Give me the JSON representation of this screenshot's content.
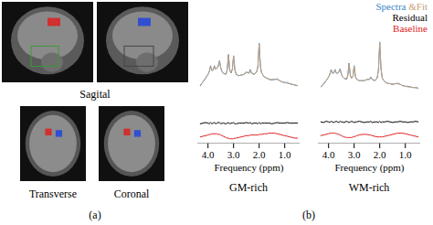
{
  "panel_a": {
    "label": "(a)",
    "views": [
      {
        "label": "Sagital"
      },
      {
        "label": "Transverse"
      },
      {
        "label": "Coronal"
      }
    ]
  },
  "panel_b_label": "(b)",
  "chart_data": [
    {
      "type": "line",
      "title": "GM-rich",
      "x_label": "Frequency (ppm)",
      "xlim": [
        4.4,
        0.4
      ],
      "xticks": [
        4,
        3,
        2,
        1
      ],
      "ylim": [
        -0.62,
        1.02
      ],
      "tick_labels": "x",
      "x": [
        4.3,
        4.2,
        4.1,
        4.0,
        3.95,
        3.9,
        3.85,
        3.8,
        3.75,
        3.7,
        3.65,
        3.6,
        3.55,
        3.5,
        3.45,
        3.4,
        3.3,
        3.25,
        3.2,
        3.15,
        3.1,
        3.05,
        3.0,
        2.95,
        2.9,
        2.8,
        2.7,
        2.6,
        2.5,
        2.4,
        2.35,
        2.3,
        2.2,
        2.1,
        2.05,
        2.0,
        1.95,
        1.9,
        1.8,
        1.7,
        1.6,
        1.5,
        1.4,
        1.3,
        1.2,
        1.1,
        1.0,
        0.9,
        0.8,
        0.7,
        0.6,
        0.5
      ],
      "series": [
        {
          "name": "Spectra",
          "color": "#3a86c8",
          "values": [
            0.3,
            0.36,
            0.42,
            0.48,
            0.52,
            0.62,
            0.54,
            0.55,
            0.62,
            0.56,
            0.58,
            0.62,
            0.7,
            0.58,
            0.52,
            0.5,
            0.48,
            0.55,
            0.8,
            0.55,
            0.5,
            0.56,
            0.78,
            0.55,
            0.48,
            0.46,
            0.47,
            0.48,
            0.52,
            0.5,
            0.56,
            0.5,
            0.48,
            0.52,
            0.6,
            0.98,
            0.6,
            0.5,
            0.44,
            0.42,
            0.4,
            0.39,
            0.4,
            0.41,
            0.38,
            0.36,
            0.35,
            0.35,
            0.33,
            0.32,
            0.31,
            0.3
          ]
        },
        {
          "name": "&Fit",
          "color": "#c8a07a",
          "values": [
            0.31,
            0.36,
            0.41,
            0.48,
            0.53,
            0.61,
            0.55,
            0.55,
            0.61,
            0.57,
            0.58,
            0.61,
            0.69,
            0.59,
            0.52,
            0.5,
            0.49,
            0.55,
            0.79,
            0.56,
            0.5,
            0.56,
            0.77,
            0.56,
            0.49,
            0.46,
            0.47,
            0.48,
            0.51,
            0.5,
            0.55,
            0.51,
            0.48,
            0.52,
            0.61,
            0.97,
            0.61,
            0.5,
            0.44,
            0.42,
            0.4,
            0.4,
            0.4,
            0.4,
            0.38,
            0.36,
            0.35,
            0.34,
            0.33,
            0.32,
            0.31,
            0.3
          ]
        },
        {
          "name": "Residual",
          "color": "#000000",
          "values": [
            -0.31,
            -0.3,
            -0.29,
            -0.3,
            -0.31,
            -0.29,
            -0.31,
            -0.3,
            -0.29,
            -0.31,
            -0.3,
            -0.29,
            -0.29,
            -0.31,
            -0.3,
            -0.3,
            -0.31,
            -0.3,
            -0.29,
            -0.31,
            -0.3,
            -0.3,
            -0.29,
            -0.31,
            -0.31,
            -0.3,
            -0.3,
            -0.3,
            -0.29,
            -0.3,
            -0.29,
            -0.31,
            -0.3,
            -0.3,
            -0.31,
            -0.29,
            -0.31,
            -0.3,
            -0.3,
            -0.3,
            -0.3,
            -0.31,
            -0.3,
            -0.29,
            -0.3,
            -0.3,
            -0.3,
            -0.29,
            -0.3,
            -0.3,
            -0.3,
            -0.3
          ]
        },
        {
          "name": "Baseline",
          "color": "#e02020",
          "values": [
            -0.52,
            -0.51,
            -0.5,
            -0.49,
            -0.48,
            -0.48,
            -0.47,
            -0.47,
            -0.47,
            -0.47,
            -0.47,
            -0.48,
            -0.48,
            -0.49,
            -0.5,
            -0.51,
            -0.53,
            -0.54,
            -0.54,
            -0.55,
            -0.55,
            -0.55,
            -0.55,
            -0.54,
            -0.54,
            -0.53,
            -0.52,
            -0.51,
            -0.5,
            -0.5,
            -0.49,
            -0.49,
            -0.49,
            -0.49,
            -0.49,
            -0.48,
            -0.48,
            -0.48,
            -0.47,
            -0.47,
            -0.46,
            -0.46,
            -0.46,
            -0.47,
            -0.48,
            -0.49,
            -0.5,
            -0.51,
            -0.52,
            -0.53,
            -0.54,
            -0.54
          ]
        }
      ]
    },
    {
      "type": "line",
      "title": "WM-rich",
      "x_label": "Frequency (ppm)",
      "xlim": [
        4.4,
        0.4
      ],
      "xticks": [
        4,
        3,
        2,
        1
      ],
      "ylim": [
        -0.62,
        1.02
      ],
      "tick_labels": "x",
      "legend": "top-right",
      "x": [
        4.3,
        4.2,
        4.1,
        4.0,
        3.95,
        3.9,
        3.85,
        3.8,
        3.75,
        3.7,
        3.65,
        3.6,
        3.55,
        3.5,
        3.45,
        3.4,
        3.3,
        3.25,
        3.2,
        3.15,
        3.1,
        3.05,
        3.0,
        2.95,
        2.9,
        2.8,
        2.7,
        2.6,
        2.5,
        2.4,
        2.35,
        2.3,
        2.2,
        2.1,
        2.05,
        2.0,
        1.95,
        1.9,
        1.8,
        1.7,
        1.6,
        1.5,
        1.4,
        1.3,
        1.2,
        1.1,
        1.0,
        0.9,
        0.8,
        0.7,
        0.6,
        0.5
      ],
      "series": [
        {
          "name": "Spectra",
          "color": "#3a86c8",
          "values": [
            0.28,
            0.32,
            0.38,
            0.44,
            0.48,
            0.56,
            0.5,
            0.5,
            0.56,
            0.5,
            0.5,
            0.52,
            0.57,
            0.48,
            0.44,
            0.42,
            0.4,
            0.46,
            0.66,
            0.46,
            0.42,
            0.45,
            0.62,
            0.44,
            0.4,
            0.38,
            0.38,
            0.38,
            0.4,
            0.4,
            0.44,
            0.4,
            0.38,
            0.42,
            0.55,
            1.0,
            0.56,
            0.42,
            0.36,
            0.34,
            0.33,
            0.32,
            0.33,
            0.34,
            0.32,
            0.3,
            0.29,
            0.29,
            0.28,
            0.27,
            0.27,
            0.26
          ]
        },
        {
          "name": "&Fit",
          "color": "#c8a07a",
          "values": [
            0.29,
            0.33,
            0.38,
            0.44,
            0.49,
            0.55,
            0.51,
            0.5,
            0.55,
            0.51,
            0.5,
            0.52,
            0.56,
            0.49,
            0.44,
            0.42,
            0.41,
            0.46,
            0.65,
            0.47,
            0.42,
            0.45,
            0.61,
            0.45,
            0.4,
            0.38,
            0.38,
            0.38,
            0.4,
            0.4,
            0.43,
            0.41,
            0.38,
            0.42,
            0.56,
            0.99,
            0.57,
            0.42,
            0.36,
            0.34,
            0.33,
            0.33,
            0.33,
            0.33,
            0.32,
            0.3,
            0.29,
            0.28,
            0.28,
            0.27,
            0.27,
            0.26
          ]
        },
        {
          "name": "Residual",
          "color": "#000000",
          "values": [
            -0.28,
            -0.29,
            -0.27,
            -0.28,
            -0.29,
            -0.27,
            -0.28,
            -0.29,
            -0.28,
            -0.27,
            -0.28,
            -0.29,
            -0.27,
            -0.28,
            -0.28,
            -0.29,
            -0.27,
            -0.28,
            -0.29,
            -0.28,
            -0.27,
            -0.28,
            -0.29,
            -0.28,
            -0.28,
            -0.27,
            -0.28,
            -0.29,
            -0.28,
            -0.28,
            -0.27,
            -0.29,
            -0.28,
            -0.28,
            -0.29,
            -0.27,
            -0.29,
            -0.28,
            -0.28,
            -0.27,
            -0.28,
            -0.29,
            -0.28,
            -0.28,
            -0.27,
            -0.28,
            -0.28,
            -0.29,
            -0.28,
            -0.28,
            -0.27,
            -0.28
          ]
        },
        {
          "name": "Baseline",
          "color": "#e02020",
          "values": [
            -0.5,
            -0.49,
            -0.48,
            -0.47,
            -0.46,
            -0.46,
            -0.46,
            -0.46,
            -0.46,
            -0.47,
            -0.47,
            -0.48,
            -0.49,
            -0.5,
            -0.51,
            -0.52,
            -0.53,
            -0.53,
            -0.53,
            -0.53,
            -0.53,
            -0.52,
            -0.52,
            -0.51,
            -0.5,
            -0.49,
            -0.48,
            -0.48,
            -0.48,
            -0.49,
            -0.49,
            -0.5,
            -0.51,
            -0.52,
            -0.52,
            -0.52,
            -0.52,
            -0.52,
            -0.51,
            -0.5,
            -0.49,
            -0.48,
            -0.47,
            -0.46,
            -0.46,
            -0.46,
            -0.47,
            -0.48,
            -0.49,
            -0.5,
            -0.51,
            -0.52
          ]
        }
      ]
    }
  ]
}
